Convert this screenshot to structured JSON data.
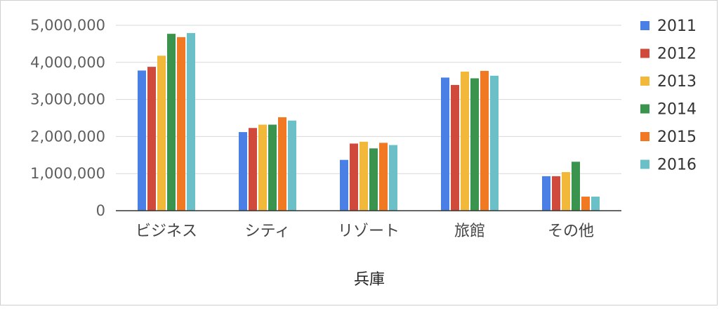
{
  "chart_data": {
    "type": "bar",
    "title": "",
    "xlabel": "兵庫",
    "ylabel": "",
    "ylim": [
      0,
      5000000
    ],
    "yticks": [
      0,
      1000000,
      2000000,
      3000000,
      4000000,
      5000000
    ],
    "ytick_labels": [
      "0",
      "1,000,000",
      "2,000,000",
      "3,000,000",
      "4,000,000",
      "5,000,000"
    ],
    "categories": [
      "ビジネス",
      "シティ",
      "リゾート",
      "旅館",
      "その他"
    ],
    "grid": true,
    "legend_position": "right",
    "series": [
      {
        "name": "2011",
        "color": "#4a7fe6",
        "values": [
          3780000,
          2120000,
          1370000,
          3590000,
          930000
        ]
      },
      {
        "name": "2012",
        "color": "#d04a3c",
        "values": [
          3880000,
          2230000,
          1810000,
          3390000,
          930000
        ]
      },
      {
        "name": "2013",
        "color": "#f1b83a",
        "values": [
          4180000,
          2320000,
          1860000,
          3750000,
          1040000
        ]
      },
      {
        "name": "2014",
        "color": "#3a944d",
        "values": [
          4770000,
          2320000,
          1680000,
          3570000,
          1320000
        ]
      },
      {
        "name": "2015",
        "color": "#f27924",
        "values": [
          4680000,
          2520000,
          1830000,
          3770000,
          380000
        ]
      },
      {
        "name": "2016",
        "color": "#6bc0c8",
        "values": [
          4790000,
          2430000,
          1770000,
          3640000,
          380000
        ]
      }
    ]
  }
}
